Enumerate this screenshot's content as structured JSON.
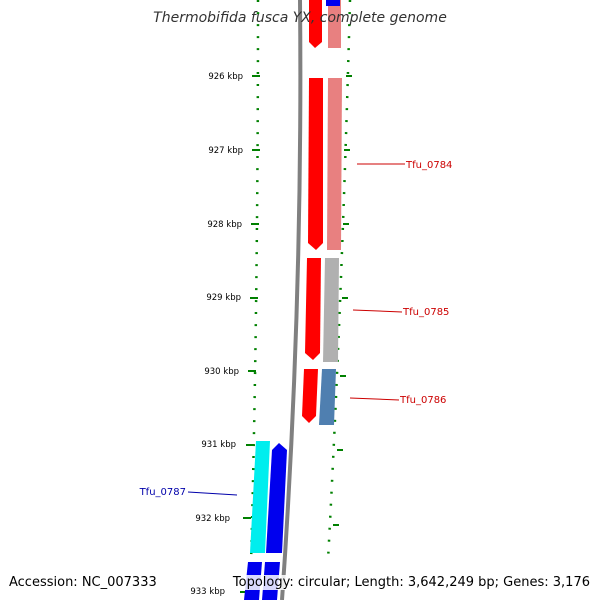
{
  "title": "Thermobifida fusca YX, complete genome",
  "footer": {
    "accession": "Accession: NC_007333",
    "summary": "Topology: circular; Length: 3,642,249 bp; Genes: 3,176"
  },
  "tick_labels": [
    "926 kbp",
    "927 kbp",
    "928 kbp",
    "929 kbp",
    "930 kbp",
    "931 kbp",
    "932 kbp",
    "933 kbp"
  ],
  "gene_labels": [
    {
      "name": "Tfu_0784",
      "color": "#cc0000"
    },
    {
      "name": "Tfu_0785",
      "color": "#cc0000"
    },
    {
      "name": "Tfu_0786",
      "color": "#cc0000"
    },
    {
      "name": "Tfu_0787",
      "color": "#0000aa"
    }
  ],
  "colors": {
    "backbone": "#808080",
    "ticks": "#008000",
    "forward_cds": "#ff0000",
    "forward_cds_shade": "#e88080",
    "gray_feature": "#b0b0b0",
    "steel_feature": "#4f7fb0",
    "reverse_cds": "#0000ee",
    "cyan_feature": "#00eeee"
  }
}
